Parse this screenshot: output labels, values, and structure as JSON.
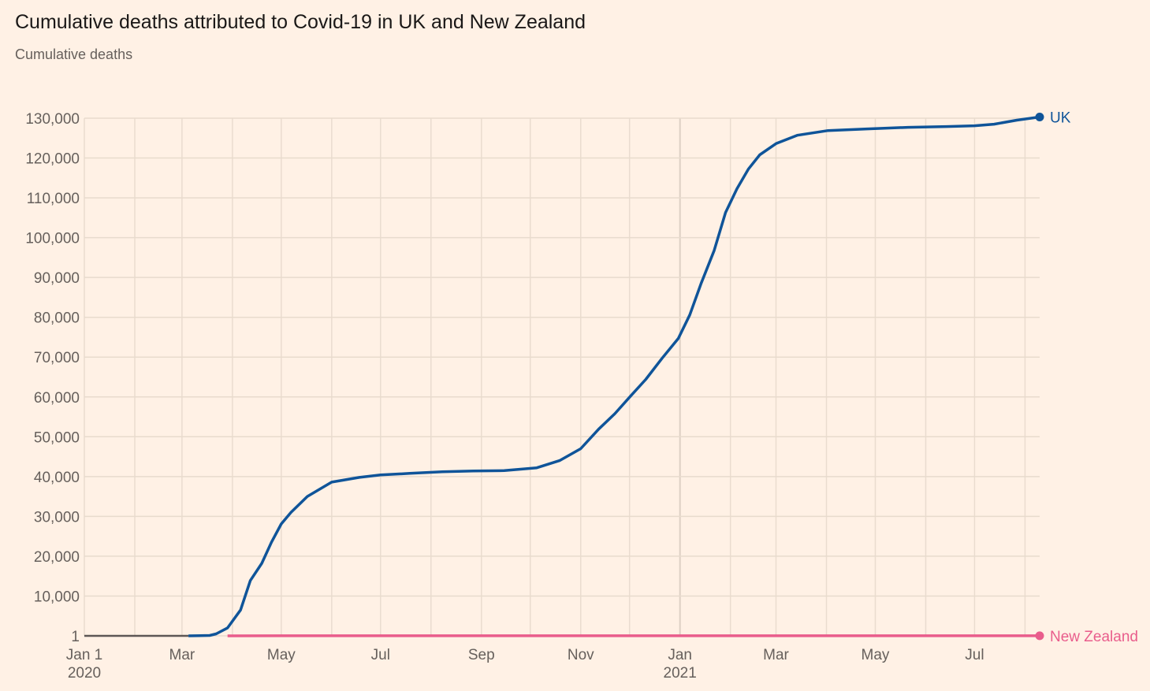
{
  "chart_data": {
    "type": "line",
    "title": "Cumulative deaths attributed to Covid-19 in UK and New Zealand",
    "subtitle": "Cumulative deaths",
    "xlabel": "",
    "ylabel": "Cumulative deaths",
    "xlim": [
      "2020-01-01",
      "2021-08-10"
    ],
    "ylim": [
      1,
      130000
    ],
    "grid": true,
    "y_ticks": [
      {
        "value": 1,
        "label": "1"
      },
      {
        "value": 10000,
        "label": "10,000"
      },
      {
        "value": 20000,
        "label": "20,000"
      },
      {
        "value": 30000,
        "label": "30,000"
      },
      {
        "value": 40000,
        "label": "40,000"
      },
      {
        "value": 50000,
        "label": "50,000"
      },
      {
        "value": 60000,
        "label": "60,000"
      },
      {
        "value": 70000,
        "label": "70,000"
      },
      {
        "value": 80000,
        "label": "80,000"
      },
      {
        "value": 90000,
        "label": "90,000"
      },
      {
        "value": 100000,
        "label": "100,000"
      },
      {
        "value": 110000,
        "label": "110,000"
      },
      {
        "value": 120000,
        "label": "120,000"
      },
      {
        "value": 130000,
        "label": "130,000"
      }
    ],
    "x_ticks": [
      {
        "date": "2020-01-01",
        "label": "Jan 1",
        "label2": "2020"
      },
      {
        "date": "2020-03-01",
        "label": "Mar"
      },
      {
        "date": "2020-05-01",
        "label": "May"
      },
      {
        "date": "2020-07-01",
        "label": "Jul"
      },
      {
        "date": "2020-09-01",
        "label": "Sep"
      },
      {
        "date": "2020-11-01",
        "label": "Nov"
      },
      {
        "date": "2021-01-01",
        "label": "Jan",
        "label2": "2021"
      },
      {
        "date": "2021-03-01",
        "label": "Mar"
      },
      {
        "date": "2021-05-01",
        "label": "May"
      },
      {
        "date": "2021-07-01",
        "label": "Jul"
      }
    ],
    "baseline": {
      "from": "2020-01-01",
      "to": "2020-03-05",
      "value": 1,
      "color": "#5d5755"
    },
    "series": [
      {
        "name": "UK",
        "color": "#0f5499",
        "points": [
          [
            "2020-03-05",
            1
          ],
          [
            "2020-03-18",
            100
          ],
          [
            "2020-03-22",
            500
          ],
          [
            "2020-03-29",
            2000
          ],
          [
            "2020-04-06",
            6500
          ],
          [
            "2020-04-12",
            13900
          ],
          [
            "2020-04-19",
            18200
          ],
          [
            "2020-04-25",
            23500
          ],
          [
            "2020-05-01",
            28100
          ],
          [
            "2020-05-07",
            31000
          ],
          [
            "2020-05-17",
            35000
          ],
          [
            "2020-06-01",
            38600
          ],
          [
            "2020-06-18",
            39800
          ],
          [
            "2020-07-01",
            40400
          ],
          [
            "2020-07-19",
            40800
          ],
          [
            "2020-08-08",
            41200
          ],
          [
            "2020-08-27",
            41400
          ],
          [
            "2020-09-15",
            41500
          ],
          [
            "2020-10-05",
            42200
          ],
          [
            "2020-10-19",
            44000
          ],
          [
            "2020-11-01",
            47000
          ],
          [
            "2020-11-12",
            51900
          ],
          [
            "2020-11-22",
            55800
          ],
          [
            "2020-12-02",
            60400
          ],
          [
            "2020-12-11",
            64400
          ],
          [
            "2020-12-21",
            69700
          ],
          [
            "2020-12-31",
            74700
          ],
          [
            "2021-01-07",
            80600
          ],
          [
            "2021-01-14",
            88500
          ],
          [
            "2021-01-22",
            96800
          ],
          [
            "2021-01-29",
            106300
          ],
          [
            "2021-02-05",
            112300
          ],
          [
            "2021-02-12",
            117200
          ],
          [
            "2021-02-19",
            120800
          ],
          [
            "2021-03-01",
            123600
          ],
          [
            "2021-03-14",
            125700
          ],
          [
            "2021-04-02",
            126900
          ],
          [
            "2021-04-26",
            127300
          ],
          [
            "2021-05-21",
            127700
          ],
          [
            "2021-06-14",
            127900
          ],
          [
            "2021-07-01",
            128100
          ],
          [
            "2021-07-13",
            128500
          ],
          [
            "2021-07-27",
            129500
          ],
          [
            "2021-08-10",
            130300
          ]
        ]
      },
      {
        "name": "New Zealand",
        "color": "#e95d8c",
        "points": [
          [
            "2020-03-29",
            1
          ],
          [
            "2020-05-01",
            20
          ],
          [
            "2020-09-01",
            24
          ],
          [
            "2021-02-01",
            25
          ],
          [
            "2021-08-10",
            26
          ]
        ]
      }
    ]
  }
}
